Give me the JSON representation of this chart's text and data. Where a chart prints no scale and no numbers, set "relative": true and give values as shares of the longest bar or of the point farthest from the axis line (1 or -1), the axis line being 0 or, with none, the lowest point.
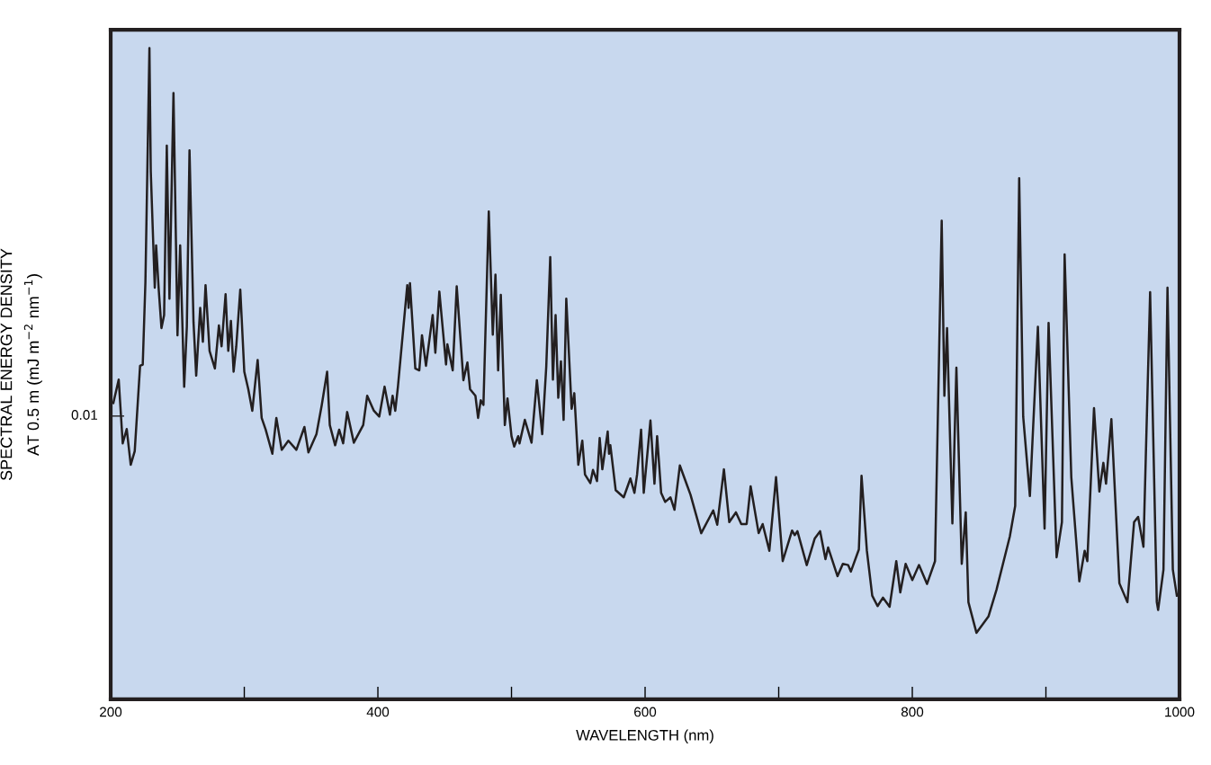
{
  "chart_data": {
    "type": "line",
    "relative": true,
    "xlabel": "WAVELENGTH (nm)",
    "ylabel": "SPECTRAL ENERGY DENSITY\nAT 0.5 m (mJ m$^{−2}$ nm$^{−1}$)",
    "annotations": [
      "0.01"
    ],
    "grid": false,
    "marker": "none",
    "line_style": "solid",
    "xlim": [
      200,
      1000
    ],
    "xticks": [
      200,
      {
        "value": 300,
        "label": null
      },
      400,
      {
        "value": 500,
        "label": null
      },
      600,
      {
        "value": 700,
        "label": null
      },
      800,
      {
        "value": 900,
        "label": null
      },
      1000
    ],
    "x": [
      202,
      206,
      209,
      212,
      215,
      218,
      222,
      224,
      226,
      229,
      230,
      233,
      234,
      236,
      238,
      240,
      242,
      244,
      247,
      250,
      252,
      255,
      257,
      259,
      262,
      264,
      267,
      269,
      271,
      274,
      278,
      281,
      283,
      286,
      288,
      290,
      292,
      294,
      297,
      300,
      303,
      306,
      310,
      313,
      316,
      321,
      324,
      328,
      333,
      339,
      345,
      348,
      354,
      358,
      362,
      364,
      368,
      371,
      374,
      377,
      382,
      389,
      392,
      397,
      401,
      405,
      409,
      411,
      413,
      415,
      422,
      423,
      424,
      428,
      431,
      433,
      436,
      441,
      443,
      446,
      451,
      452,
      456,
      459,
      464,
      467,
      469,
      473,
      475,
      477,
      479,
      483,
      486,
      488,
      490,
      492,
      495,
      497,
      500,
      502,
      505,
      506,
      510,
      512,
      515,
      519,
      523,
      526,
      529,
      531,
      533,
      535,
      537,
      539,
      541,
      545,
      547,
      550,
      553,
      555,
      559,
      561,
      564,
      566,
      568,
      572,
      573,
      574,
      578,
      584,
      589,
      592,
      594,
      597,
      599,
      604,
      607,
      609,
      612,
      615,
      619,
      622,
      626,
      634,
      642,
      651,
      654,
      659,
      663,
      668,
      672,
      676,
      679,
      685,
      688,
      693,
      698,
      703,
      710,
      712,
      714,
      721,
      727,
      731,
      735,
      737,
      744,
      748,
      752,
      754,
      760,
      762,
      766,
      770,
      774,
      778,
      783,
      788,
      791,
      795,
      800,
      805,
      811,
      817,
      822,
      824,
      826,
      830,
      833,
      837,
      840,
      842,
      848,
      857,
      863,
      873,
      877,
      880,
      883,
      888,
      894,
      899,
      902,
      908,
      912,
      914,
      919,
      925,
      929,
      931,
      936,
      940,
      943,
      945,
      949,
      955,
      961,
      966,
      969,
      973,
      978,
      983,
      984,
      988,
      991,
      995,
      998
    ],
    "series": [
      {
        "color": "#231f20",
        "values": [
          0.455,
          0.491,
          0.393,
          0.415,
          0.36,
          0.381,
          0.512,
          0.514,
          0.641,
          1,
          0.811,
          0.632,
          0.697,
          0.628,
          0.57,
          0.59,
          0.85,
          0.615,
          0.931,
          0.559,
          0.697,
          0.48,
          0.572,
          0.843,
          0.579,
          0.497,
          0.601,
          0.549,
          0.636,
          0.535,
          0.508,
          0.574,
          0.542,
          0.622,
          0.535,
          0.581,
          0.503,
          0.542,
          0.629,
          0.503,
          0.476,
          0.443,
          0.521,
          0.432,
          0.414,
          0.377,
          0.432,
          0.383,
          0.397,
          0.383,
          0.418,
          0.379,
          0.407,
          0.452,
          0.503,
          0.421,
          0.39,
          0.414,
          0.393,
          0.441,
          0.394,
          0.421,
          0.466,
          0.443,
          0.434,
          0.48,
          0.437,
          0.466,
          0.443,
          0.48,
          0.636,
          0.601,
          0.639,
          0.508,
          0.505,
          0.559,
          0.512,
          0.59,
          0.532,
          0.626,
          0.514,
          0.545,
          0.505,
          0.634,
          0.49,
          0.517,
          0.476,
          0.466,
          0.432,
          0.459,
          0.452,
          0.749,
          0.56,
          0.652,
          0.505,
          0.621,
          0.421,
          0.462,
          0.404,
          0.388,
          0.404,
          0.393,
          0.429,
          0.415,
          0.394,
          0.49,
          0.407,
          0.51,
          0.679,
          0.491,
          0.59,
          0.463,
          0.519,
          0.429,
          0.615,
          0.446,
          0.47,
          0.36,
          0.397,
          0.345,
          0.332,
          0.352,
          0.335,
          0.401,
          0.353,
          0.411,
          0.377,
          0.39,
          0.321,
          0.31,
          0.339,
          0.317,
          0.345,
          0.414,
          0.317,
          0.428,
          0.331,
          0.404,
          0.317,
          0.303,
          0.31,
          0.291,
          0.359,
          0.314,
          0.255,
          0.29,
          0.268,
          0.353,
          0.272,
          0.287,
          0.269,
          0.269,
          0.327,
          0.255,
          0.269,
          0.228,
          0.341,
          0.212,
          0.259,
          0.252,
          0.258,
          0.206,
          0.247,
          0.258,
          0.215,
          0.233,
          0.189,
          0.208,
          0.206,
          0.196,
          0.23,
          0.343,
          0.228,
          0.159,
          0.143,
          0.156,
          0.142,
          0.212,
          0.164,
          0.208,
          0.183,
          0.206,
          0.177,
          0.212,
          0.735,
          0.466,
          0.57,
          0.27,
          0.509,
          0.208,
          0.287,
          0.149,
          0.102,
          0.127,
          0.168,
          0.25,
          0.297,
          0.8,
          0.434,
          0.312,
          0.572,
          0.262,
          0.578,
          0.218,
          0.272,
          0.683,
          0.341,
          0.181,
          0.228,
          0.212,
          0.447,
          0.319,
          0.363,
          0.331,
          0.43,
          0.178,
          0.149,
          0.272,
          0.28,
          0.234,
          0.625,
          0.149,
          0.137,
          0.199,
          0.632,
          0.199,
          0.159
        ]
      }
    ]
  }
}
